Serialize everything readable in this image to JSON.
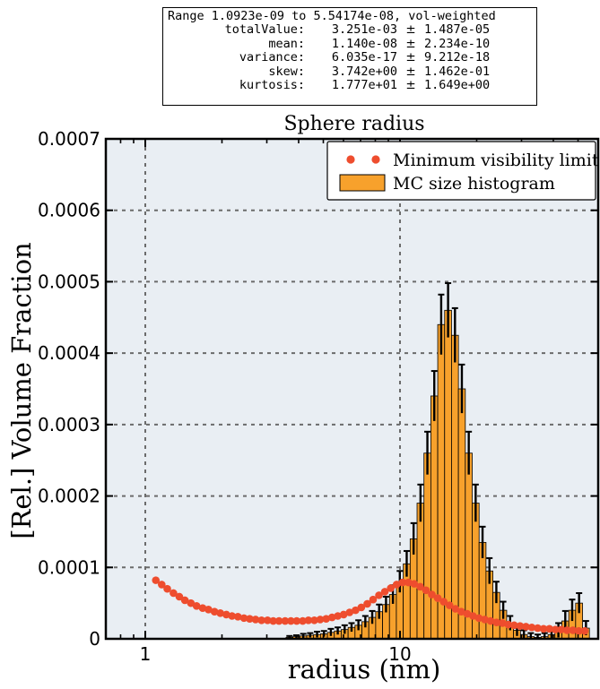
{
  "stats": {
    "range": "Range 1.0923e-09 to 5.54174e-08, vol-weighted",
    "rows": [
      {
        "name": "totalValue:",
        "value": "3.251e-03",
        "pm": "±",
        "err": "1.487e-05"
      },
      {
        "name": "mean:",
        "value": "1.140e-08",
        "pm": "±",
        "err": "2.234e-10"
      },
      {
        "name": "variance:",
        "value": "6.035e-17",
        "pm": "±",
        "err": "9.212e-18"
      },
      {
        "name": "skew:",
        "value": "3.742e+00",
        "pm": "±",
        "err": "1.462e-01"
      },
      {
        "name": "kurtosis:",
        "value": "1.777e+01",
        "pm": "±",
        "err": "1.649e+00"
      }
    ]
  },
  "chart_data": {
    "type": "bar",
    "title": "Sphere radius",
    "xlabel": "radius (nm)",
    "ylabel": "[Rel.] Volume Fraction",
    "x_scale": "log",
    "xlim": [
      0.7,
      60
    ],
    "ylim": [
      0,
      0.0007
    ],
    "x_ticks": [
      {
        "value": 1,
        "label": "1"
      },
      {
        "value": 10,
        "label": "10"
      }
    ],
    "y_ticks": [
      {
        "value": 0,
        "label": "0"
      },
      {
        "value": 0.0001,
        "label": "0.0001"
      },
      {
        "value": 0.0002,
        "label": "0.0002"
      },
      {
        "value": 0.0003,
        "label": "0.0003"
      },
      {
        "value": 0.0004,
        "label": "0.0004"
      },
      {
        "value": 0.0005,
        "label": "0.0005"
      },
      {
        "value": 0.0006,
        "label": "0.0006"
      },
      {
        "value": 0.0007,
        "label": "0.0007"
      }
    ],
    "grid": true,
    "legend_position": "top-right",
    "legend": [
      {
        "label": "Minimum visibility limit",
        "kind": "dots",
        "color": "#ee4d2e"
      },
      {
        "label": "MC size histogram",
        "kind": "bar",
        "color": "#f7a12c"
      }
    ],
    "histogram": {
      "name": "MC size histogram",
      "color": "#f7a12c",
      "edge_color": "#000000",
      "bin_edges_log_start": 1.0923,
      "bin_edges_log_end": 55.4174,
      "values": [
        0,
        0,
        0,
        0,
        0,
        0,
        0,
        0,
        0,
        0,
        0,
        0,
        0,
        0,
        0,
        0,
        0,
        0,
        0,
        2e-06,
        3e-06,
        4e-06,
        5e-06,
        6e-06,
        7e-06,
        9e-06,
        1.1e-05,
        1.3e-05,
        1.6e-05,
        1.9e-05,
        2.4e-05,
        3e-05,
        3.8e-05,
        4.8e-05,
        6.2e-05,
        8e-05,
        0.000105,
        0.00014,
        0.00019,
        0.00026,
        0.00034,
        0.00044,
        0.00046,
        0.000425,
        0.00035,
        0.00026,
        0.00019,
        0.000135,
        9.5e-05,
        6.5e-05,
        4e-05,
        2.2e-05,
        1.2e-05,
        6e-06,
        3e-06,
        2e-06,
        3e-06,
        6e-06,
        1.2e-05,
        2.5e-05,
        4e-05,
        5e-05,
        1.5e-05
      ],
      "errors": [
        0,
        0,
        0,
        0,
        0,
        0,
        0,
        0,
        0,
        0,
        0,
        0,
        0,
        0,
        0,
        0,
        0,
        0,
        0,
        2e-06,
        2e-06,
        3e-06,
        3e-06,
        4e-06,
        4e-06,
        5e-06,
        5e-06,
        6e-06,
        6e-06,
        7e-06,
        8e-06,
        9e-06,
        1e-05,
        1.1e-05,
        1.3e-05,
        1.5e-05,
        1.8e-05,
        2.2e-05,
        2.6e-05,
        3e-05,
        3.5e-05,
        4.2e-05,
        3.8e-05,
        3.8e-05,
        3.4e-05,
        3e-05,
        2.6e-05,
        2.2e-05,
        1.8e-05,
        1.5e-05,
        1.2e-05,
        1e-05,
        8e-06,
        6e-06,
        5e-06,
        4e-06,
        5e-06,
        7e-06,
        1e-05,
        1.4e-05,
        1.5e-05,
        1.4e-05,
        1e-05
      ]
    },
    "visibility_limit": {
      "name": "Minimum visibility limit",
      "color": "#ee4d2e",
      "x": [
        1.1,
        1.16,
        1.22,
        1.29,
        1.36,
        1.43,
        1.51,
        1.59,
        1.68,
        1.77,
        1.87,
        1.97,
        2.08,
        2.19,
        2.31,
        2.44,
        2.57,
        2.71,
        2.86,
        3.02,
        3.18,
        3.35,
        3.54,
        3.73,
        3.93,
        4.15,
        4.37,
        4.61,
        4.86,
        5.13,
        5.41,
        5.7,
        6.01,
        6.34,
        6.69,
        7.05,
        7.44,
        7.84,
        8.27,
        8.72,
        9.2,
        9.7,
        10.23,
        10.79,
        11.37,
        12,
        12.65,
        13.34,
        14.07,
        14.84,
        15.65,
        16.5,
        17.4,
        18.35,
        19.35,
        20.41,
        21.52,
        22.7,
        23.93,
        25.24,
        26.62,
        28.07,
        29.6,
        31.22,
        32.92,
        34.72,
        36.61,
        38.61,
        40.72,
        42.94,
        45.28,
        47.75,
        50.36,
        53.1
      ],
      "y": [
        8.2e-05,
        7.6e-05,
        7e-05,
        6.4e-05,
        5.9e-05,
        5.4e-05,
        5e-05,
        4.6e-05,
        4.3e-05,
        4.1e-05,
        3.8e-05,
        3.6e-05,
        3.4e-05,
        3.2e-05,
        3.1e-05,
        2.9e-05,
        2.8e-05,
        2.7e-05,
        2.6e-05,
        2.6e-05,
        2.5e-05,
        2.5e-05,
        2.5e-05,
        2.5e-05,
        2.5e-05,
        2.5e-05,
        2.6e-05,
        2.6e-05,
        2.7e-05,
        2.8e-05,
        3e-05,
        3.2e-05,
        3.4e-05,
        3.7e-05,
        4e-05,
        4.4e-05,
        4.9e-05,
        5.5e-05,
        6.1e-05,
        6.6e-05,
        7.1e-05,
        7.6e-05,
        7.9e-05,
        7.9e-05,
        7.7e-05,
        7.3e-05,
        6.8e-05,
        6.2e-05,
        5.7e-05,
        5.2e-05,
        4.7e-05,
        4.2e-05,
        3.8e-05,
        3.5e-05,
        3.2e-05,
        2.9e-05,
        2.7e-05,
        2.5e-05,
        2.3e-05,
        2.2e-05,
        2e-05,
        1.9e-05,
        1.8e-05,
        1.7e-05,
        1.6e-05,
        1.5e-05,
        1.4e-05,
        1.4e-05,
        1.3e-05,
        1.3e-05,
        1.2e-05,
        1.2e-05,
        1.1e-05,
        1.1e-05
      ]
    }
  }
}
